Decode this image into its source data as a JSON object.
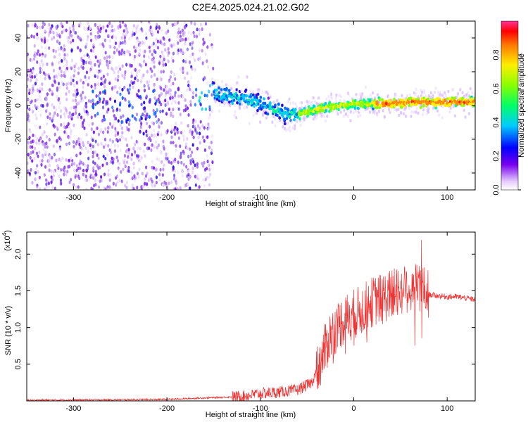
{
  "title": "C2E4.2025.024.21.02.G02",
  "chart_data": [
    {
      "type": "heatmap",
      "xlabel": "Height of straight line (km)",
      "ylabel": "Frequency (Hz)",
      "xlim": [
        -350,
        130
      ],
      "ylim": [
        -50,
        50
      ],
      "xticks": [
        -300,
        -200,
        -100,
        0,
        100
      ],
      "yticks": [
        -40,
        -20,
        0,
        20,
        40
      ],
      "colorbar": {
        "label": "Normalized spectral amplitude",
        "range": [
          0,
          1
        ],
        "ticks": [
          0.0,
          0.2,
          0.4,
          0.6,
          0.8
        ]
      },
      "ridge": {
        "x": [
          -175,
          -150,
          -125,
          -100,
          -85,
          -75,
          -60,
          -45,
          -30,
          -15,
          0,
          20,
          40,
          60,
          80,
          100,
          130
        ],
        "y": [
          5,
          7,
          5,
          1,
          -3,
          -5,
          -5,
          -3,
          -1,
          0,
          1,
          1,
          1,
          2,
          2,
          2,
          2
        ]
      }
    },
    {
      "type": "line",
      "xlabel": "Height of straight line (km)",
      "ylabel": "SNR (10 * v/v)",
      "y_multiplier": "(x10",
      "y_multiplier_exp": "4",
      "xlim": [
        -350,
        130
      ],
      "ylim": [
        0,
        2.3
      ],
      "xticks": [
        -300,
        -200,
        -100,
        0,
        100
      ],
      "yticks": [
        0.5,
        1.0,
        1.5,
        2.0
      ],
      "color": "#ee3333",
      "envelope": {
        "x": [
          -350,
          -200,
          -120,
          -100,
          -80,
          -60,
          -45,
          -35,
          -25,
          -15,
          -5,
          10,
          20,
          30,
          40,
          50,
          60,
          70,
          75,
          80,
          90,
          100,
          110,
          120,
          130
        ],
        "y": [
          0.01,
          0.02,
          0.06,
          0.1,
          0.12,
          0.15,
          0.25,
          0.55,
          0.9,
          1.05,
          1.15,
          1.25,
          1.35,
          1.4,
          1.45,
          1.5,
          1.55,
          1.55,
          1.5,
          1.45,
          1.43,
          1.42,
          1.42,
          1.4,
          1.38
        ]
      }
    }
  ]
}
